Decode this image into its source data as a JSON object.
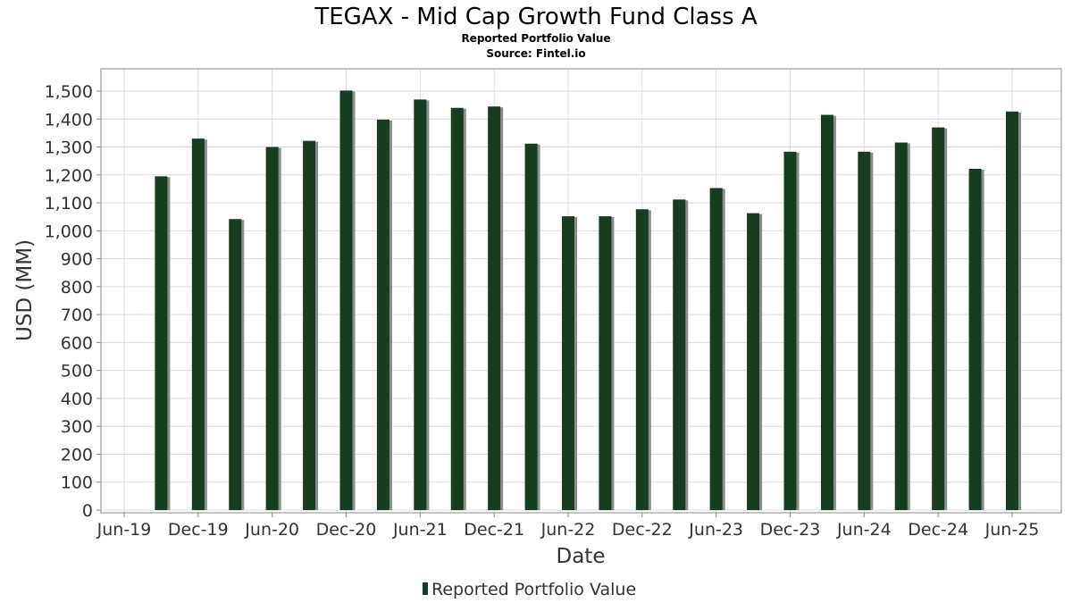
{
  "header": {
    "title": "TEGAX - Mid Cap Growth Fund Class A",
    "subtitle": "Reported Portfolio Value",
    "source": "Source: Fintel.io"
  },
  "colors": {
    "bar": "#163d1f",
    "bar_shadow": "#8c8c8c",
    "grid": "#dddddd",
    "plot_border": "#888888"
  },
  "chart_data": {
    "type": "bar",
    "title": "TEGAX - Mid Cap Growth Fund Class A",
    "subtitle": "Reported Portfolio Value",
    "xlabel": "Date",
    "ylabel": "USD (MM)",
    "ylim": [
      0,
      1500
    ],
    "xlim": [
      "2019-06",
      "2025-09"
    ],
    "y_ticks": [
      "0",
      "100",
      "200",
      "300",
      "400",
      "500",
      "600",
      "700",
      "800",
      "900",
      "1,000",
      "1,100",
      "1,200",
      "1,300",
      "1,400",
      "1,500"
    ],
    "x_ticks": [
      "Jun-19",
      "Dec-19",
      "Jun-20",
      "Dec-20",
      "Jun-21",
      "Dec-21",
      "Jun-22",
      "Dec-22",
      "Jun-23",
      "Dec-23",
      "Jun-24",
      "Dec-24",
      "Jun-25"
    ],
    "grid": true,
    "legend_position": "bottom-center",
    "series": [
      {
        "name": "Reported Portfolio Value",
        "points": [
          {
            "date": "2019-09",
            "value": 1195
          },
          {
            "date": "2019-12",
            "value": 1330
          },
          {
            "date": "2020-03",
            "value": 1042
          },
          {
            "date": "2020-06",
            "value": 1300
          },
          {
            "date": "2020-09",
            "value": 1322
          },
          {
            "date": "2020-12",
            "value": 1502
          },
          {
            "date": "2021-03",
            "value": 1398
          },
          {
            "date": "2021-06",
            "value": 1470
          },
          {
            "date": "2021-09",
            "value": 1440
          },
          {
            "date": "2021-12",
            "value": 1445
          },
          {
            "date": "2022-03",
            "value": 1312
          },
          {
            "date": "2022-06",
            "value": 1052
          },
          {
            "date": "2022-09",
            "value": 1052
          },
          {
            "date": "2022-12",
            "value": 1077
          },
          {
            "date": "2023-03",
            "value": 1112
          },
          {
            "date": "2023-06",
            "value": 1153
          },
          {
            "date": "2023-09",
            "value": 1063
          },
          {
            "date": "2023-12",
            "value": 1283
          },
          {
            "date": "2024-03",
            "value": 1415
          },
          {
            "date": "2024-06",
            "value": 1283
          },
          {
            "date": "2024-09",
            "value": 1316
          },
          {
            "date": "2024-12",
            "value": 1370
          },
          {
            "date": "2025-03",
            "value": 1222
          },
          {
            "date": "2025-06",
            "value": 1427
          }
        ]
      }
    ]
  }
}
